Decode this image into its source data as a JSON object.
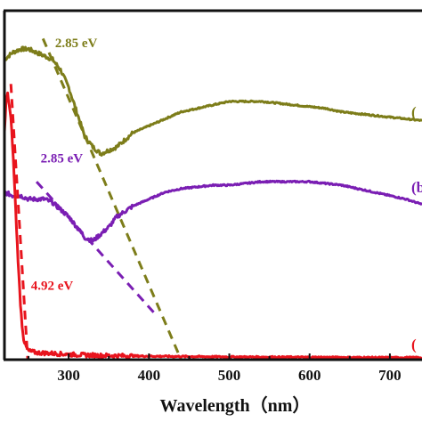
{
  "chart_data": {
    "type": "line",
    "title": "",
    "xlabel": "Wavelength（nm）",
    "ylabel": "",
    "xlim": [
      220,
      740
    ],
    "ylim": [
      0,
      1.0
    ],
    "x_ticks": [
      300,
      400,
      500,
      600,
      700
    ],
    "x_tick_labels": [
      "300",
      "400",
      "500",
      "600",
      "700"
    ],
    "grid": false,
    "legend": "none",
    "series": [
      {
        "label": "(",
        "color": "#7d7d1a",
        "x": [
          220,
          230,
          240,
          250,
          260,
          270,
          280,
          290,
          300,
          310,
          320,
          330,
          340,
          350,
          360,
          380,
          400,
          420,
          440,
          460,
          480,
          500,
          520,
          540,
          560,
          580,
          600,
          620,
          640,
          660,
          680,
          700,
          720,
          740
        ],
        "y": [
          0.86,
          0.88,
          0.89,
          0.89,
          0.88,
          0.87,
          0.86,
          0.83,
          0.78,
          0.71,
          0.64,
          0.61,
          0.59,
          0.6,
          0.61,
          0.65,
          0.67,
          0.69,
          0.71,
          0.72,
          0.73,
          0.74,
          0.74,
          0.74,
          0.735,
          0.73,
          0.725,
          0.72,
          0.71,
          0.705,
          0.7,
          0.695,
          0.69,
          0.685
        ]
      },
      {
        "label": "(b",
        "color": "#7a1eb3",
        "x": [
          220,
          230,
          240,
          250,
          260,
          270,
          280,
          290,
          300,
          310,
          320,
          330,
          340,
          350,
          360,
          380,
          400,
          420,
          440,
          460,
          480,
          500,
          520,
          540,
          560,
          580,
          600,
          620,
          640,
          660,
          680,
          700,
          720,
          740
        ],
        "y": [
          0.48,
          0.47,
          0.47,
          0.46,
          0.46,
          0.46,
          0.45,
          0.43,
          0.41,
          0.38,
          0.35,
          0.34,
          0.36,
          0.38,
          0.41,
          0.44,
          0.46,
          0.48,
          0.49,
          0.495,
          0.5,
          0.5,
          0.505,
          0.51,
          0.51,
          0.51,
          0.51,
          0.505,
          0.5,
          0.49,
          0.48,
          0.47,
          0.46,
          0.445
        ]
      },
      {
        "label": "(",
        "color": "#e8141d",
        "x": [
          220,
          222,
          224,
          226,
          228,
          230,
          232,
          234,
          236,
          238,
          240,
          242,
          244,
          246,
          250,
          260,
          280,
          300,
          340,
          400,
          500,
          600,
          700,
          740
        ],
        "y": [
          0.65,
          0.74,
          0.76,
          0.73,
          0.69,
          0.62,
          0.53,
          0.43,
          0.33,
          0.24,
          0.16,
          0.1,
          0.06,
          0.04,
          0.025,
          0.02,
          0.018,
          0.015,
          0.012,
          0.01,
          0.008,
          0.007,
          0.006,
          0.006
        ]
      }
    ],
    "tangent_lines": [
      {
        "color": "#7d7d1a",
        "x": [
          268,
          440
        ],
        "y": [
          0.92,
          0.0
        ]
      },
      {
        "color": "#7a1eb3",
        "x": [
          260,
          408
        ],
        "y": [
          0.51,
          0.13
        ]
      },
      {
        "color": "#e8141d",
        "x": [
          228,
          249
        ],
        "y": [
          0.79,
          0.0
        ]
      }
    ],
    "annotations": [
      {
        "text": "2.85 eV",
        "color": "#7d7d1a",
        "x": 283,
        "y": 0.895
      },
      {
        "text": "2.85 eV",
        "color": "#7a1eb3",
        "x": 265,
        "y": 0.565
      },
      {
        "text": "4.92 eV",
        "color": "#e8141d",
        "x": 253,
        "y": 0.2
      }
    ]
  }
}
